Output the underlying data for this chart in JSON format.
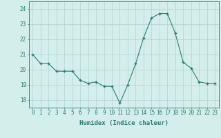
{
  "x": [
    0,
    1,
    2,
    3,
    4,
    5,
    6,
    7,
    8,
    9,
    10,
    11,
    12,
    13,
    14,
    15,
    16,
    17,
    18,
    19,
    20,
    21,
    22,
    23
  ],
  "y": [
    21.0,
    20.4,
    20.4,
    19.9,
    19.9,
    19.9,
    19.3,
    19.1,
    19.2,
    18.9,
    18.9,
    17.8,
    19.0,
    20.4,
    22.1,
    23.4,
    23.7,
    23.7,
    22.4,
    20.5,
    20.1,
    19.2,
    19.1,
    19.1
  ],
  "line_color": "#2d7a6e",
  "marker_color": "#2d7a6e",
  "bg_color": "#d4eeec",
  "grid_color": "#aed4d0",
  "xlabel": "Humidex (Indice chaleur)",
  "ylabel_ticks": [
    18,
    19,
    20,
    21,
    22,
    23,
    24
  ],
  "ylim": [
    17.5,
    24.5
  ],
  "xlim": [
    -0.5,
    23.5
  ],
  "tick_color": "#2d7a6e",
  "label_color": "#2d7a6e",
  "font": "monospace",
  "tick_fontsize": 5.5,
  "xlabel_fontsize": 6.5
}
